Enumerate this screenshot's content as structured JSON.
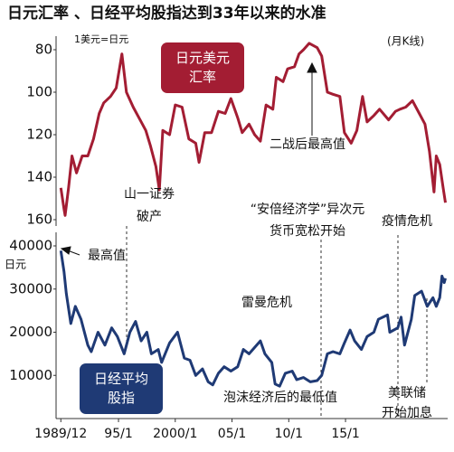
{
  "title": "日元汇率 、日经平均股指达到33年以来的水准",
  "chart_data": [
    {
      "type": "line",
      "unit_label": "1美元=日元",
      "note": "(月K线)",
      "xlim": [
        1989.5,
        2024
      ],
      "ylim": [
        160,
        80
      ],
      "yticks": [
        80,
        100,
        120,
        140,
        160
      ],
      "x": [
        1989.92,
        1990.2,
        1990.3,
        1990.6,
        1990.9,
        1991.3,
        1991.8,
        1992.3,
        1992.8,
        1993.3,
        1993.7,
        1994.3,
        1994.8,
        1995.3,
        1995.7,
        1996.3,
        1996.9,
        1997.4,
        1997.8,
        1998.3,
        1998.6,
        1998.9,
        1999.5,
        2000.0,
        2000.6,
        2001.2,
        2001.8,
        2002.1,
        2002.6,
        2003.2,
        2003.8,
        2004.4,
        2004.9,
        2005.5,
        2005.9,
        2006.5,
        2007.0,
        2007.5,
        2008.0,
        2008.6,
        2008.9,
        2009.5,
        2009.9,
        2010.5,
        2010.9,
        2011.3,
        2011.8,
        2012.5,
        2012.9,
        2013.4,
        2013.9,
        2014.5,
        2014.9,
        2015.5,
        2016.0,
        2016.5,
        2016.9,
        2017.5,
        2018.0,
        2018.8,
        2019.4,
        2019.8,
        2020.3,
        2020.9,
        2021.5,
        2022.0,
        2022.4,
        2022.8,
        2023.0,
        2023.3,
        2023.6,
        2023.8
      ],
      "series": [
        {
          "name": "日元美元汇率",
          "color": "#a31d33",
          "values": [
            145,
            155,
            158,
            145,
            130,
            138,
            130,
            130,
            122,
            110,
            105,
            102,
            98,
            82,
            100,
            107,
            113,
            118,
            125,
            135,
            146,
            118,
            120,
            106,
            107,
            122,
            124,
            133,
            119,
            119,
            109,
            110,
            103,
            112,
            119,
            115,
            120,
            123,
            106,
            108,
            93,
            95,
            89,
            88,
            82,
            80,
            77,
            79,
            83,
            100,
            101,
            102,
            119,
            124,
            118,
            102,
            114,
            111,
            108,
            113,
            109,
            108,
            107,
            104,
            110,
            115,
            128,
            147,
            130,
            134,
            145,
            152
          ]
        }
      ],
      "annotations": [
        [
          "二战后最高值"
        ],
        [
          "山一证券",
          "破产"
        ],
        [
          "“安倍经济学”异次元",
          "货币宽松开始"
        ],
        [
          "疫情危机"
        ]
      ]
    },
    {
      "type": "line",
      "unit_label": "日元",
      "xlim": [
        1989.5,
        2024
      ],
      "ylim": [
        0,
        40000
      ],
      "yticks": [
        10000,
        20000,
        30000,
        40000
      ],
      "xticks": [
        {
          "value": 1989.92,
          "label": "1989/12"
        },
        {
          "value": 1995,
          "label": "95/1"
        },
        {
          "value": 2000,
          "label": "2000/1"
        },
        {
          "value": 2005,
          "label": "05/1"
        },
        {
          "value": 2010,
          "label": "10/1"
        },
        {
          "value": 2015,
          "label": "15/1"
        }
      ],
      "x": [
        1989.92,
        1990.2,
        1990.4,
        1990.8,
        1991.2,
        1991.7,
        1992.3,
        1992.6,
        1993.2,
        1993.8,
        1994.4,
        1994.9,
        1995.5,
        1996.0,
        1996.5,
        1997.0,
        1997.5,
        1997.9,
        1998.5,
        1998.8,
        1999.5,
        2000.2,
        2000.8,
        2001.3,
        2001.8,
        2002.4,
        2002.9,
        2003.3,
        2003.8,
        2004.3,
        2004.9,
        2005.5,
        2006.0,
        2006.5,
        2007.5,
        2007.9,
        2008.5,
        2008.8,
        2009.2,
        2009.7,
        2010.3,
        2010.7,
        2011.3,
        2011.9,
        2012.5,
        2012.9,
        2013.4,
        2013.9,
        2014.5,
        2014.9,
        2015.4,
        2015.8,
        2016.4,
        2016.9,
        2017.5,
        2017.9,
        2018.7,
        2018.9,
        2019.6,
        2019.9,
        2020.2,
        2020.8,
        2021.1,
        2021.7,
        2022.2,
        2022.7,
        2023.0,
        2023.3,
        2023.5,
        2023.7,
        2023.8
      ],
      "series": [
        {
          "name": "日经平均股指",
          "color": "#1f3a75",
          "values": [
            38900,
            34000,
            29000,
            22000,
            26000,
            23000,
            17000,
            15500,
            20000,
            17000,
            21000,
            19000,
            15000,
            20000,
            22500,
            18000,
            20000,
            15000,
            16000,
            13000,
            17500,
            20000,
            14000,
            13500,
            10000,
            11500,
            8500,
            7800,
            10500,
            12000,
            11000,
            12000,
            16000,
            15000,
            18000,
            15000,
            13000,
            8000,
            7500,
            10500,
            11000,
            9000,
            9500,
            8500,
            8800,
            10000,
            15000,
            15500,
            15000,
            17500,
            20500,
            18000,
            16000,
            19000,
            20000,
            23000,
            24000,
            20000,
            21000,
            23500,
            17000,
            23000,
            28500,
            29500,
            26000,
            28000,
            26000,
            28000,
            33000,
            31500,
            32500
          ]
        }
      ],
      "annotations": [
        [
          "最高值"
        ],
        [
          "雷曼危机"
        ],
        [
          "泡沫经济后的最低值"
        ],
        [
          "美联储",
          "开始加息"
        ]
      ]
    }
  ]
}
